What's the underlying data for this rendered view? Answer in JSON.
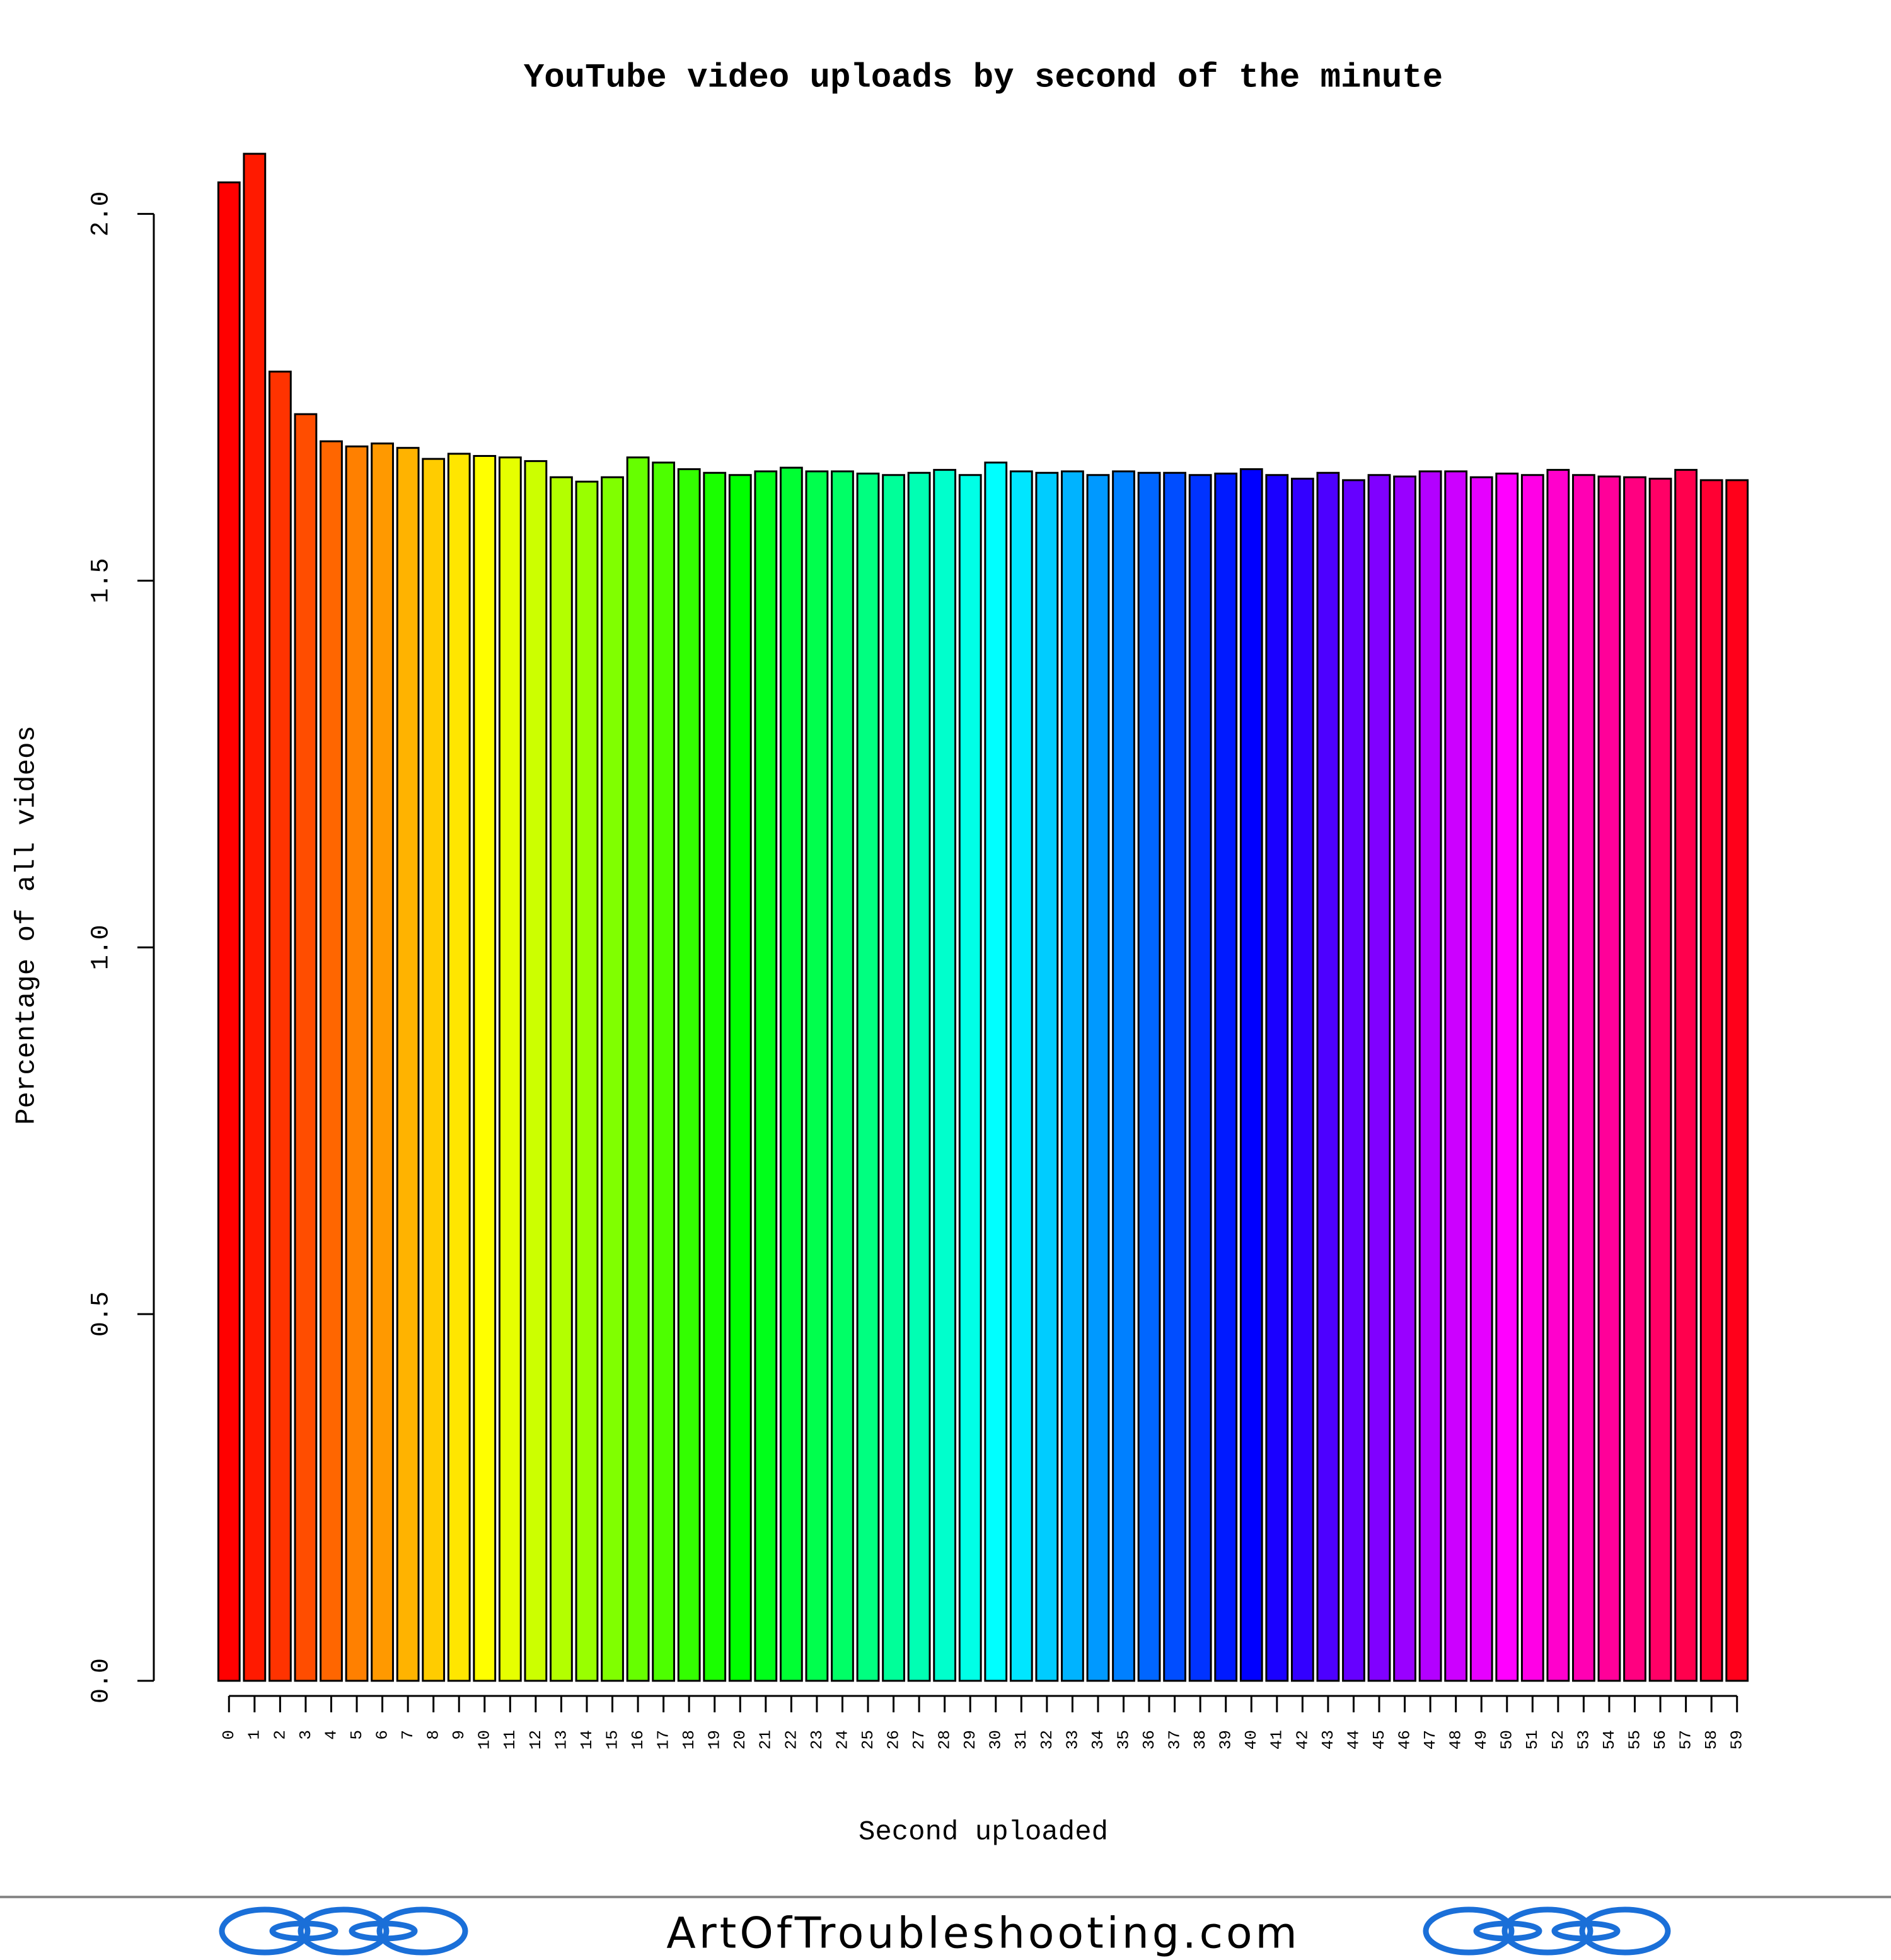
{
  "chart_data": {
    "type": "bar",
    "title": "YouTube video uploads by second of the minute",
    "x_label": "Second uploaded",
    "y_label": "Percentage of all videos",
    "categories": [
      "0",
      "1",
      "2",
      "3",
      "4",
      "5",
      "6",
      "7",
      "8",
      "9",
      "10",
      "11",
      "12",
      "13",
      "14",
      "15",
      "16",
      "17",
      "18",
      "19",
      "20",
      "21",
      "22",
      "23",
      "24",
      "25",
      "26",
      "27",
      "28",
      "29",
      "30",
      "31",
      "32",
      "33",
      "34",
      "35",
      "36",
      "37",
      "38",
      "39",
      "40",
      "41",
      "42",
      "43",
      "44",
      "45",
      "46",
      "47",
      "48",
      "49",
      "50",
      "51",
      "52",
      "53",
      "54",
      "55",
      "56",
      "57",
      "58",
      "59"
    ],
    "values": [
      2.043,
      2.082,
      1.785,
      1.727,
      1.69,
      1.683,
      1.687,
      1.681,
      1.666,
      1.673,
      1.67,
      1.668,
      1.663,
      1.641,
      1.635,
      1.641,
      1.668,
      1.661,
      1.652,
      1.647,
      1.644,
      1.649,
      1.654,
      1.649,
      1.649,
      1.646,
      1.644,
      1.647,
      1.651,
      1.644,
      1.661,
      1.649,
      1.647,
      1.649,
      1.644,
      1.649,
      1.647,
      1.647,
      1.644,
      1.646,
      1.652,
      1.644,
      1.639,
      1.647,
      1.637,
      1.644,
      1.642,
      1.649,
      1.649,
      1.641,
      1.646,
      1.644,
      1.651,
      1.644,
      1.642,
      1.641,
      1.639,
      1.651,
      1.637,
      1.637
    ],
    "colors": [
      "#FF0000",
      "#FF1A00",
      "#FF3300",
      "#FF4D00",
      "#FF6600",
      "#FF8000",
      "#FF9900",
      "#FFB300",
      "#FFCC00",
      "#FFE600",
      "#FFFF00",
      "#E6FF00",
      "#CCFF00",
      "#B3FF00",
      "#99FF00",
      "#80FF00",
      "#66FF00",
      "#4DFF00",
      "#33FF00",
      "#1AFF00",
      "#00FF00",
      "#00FF1A",
      "#00FF33",
      "#00FF4D",
      "#00FF66",
      "#00FF80",
      "#00FF99",
      "#00FFB3",
      "#00FFCC",
      "#00FFE6",
      "#00FFFF",
      "#00E6FF",
      "#00CCFF",
      "#00B3FF",
      "#0099FF",
      "#0080FF",
      "#0066FF",
      "#004DFF",
      "#0033FF",
      "#001AFF",
      "#0000FF",
      "#1A00FF",
      "#3300FF",
      "#4D00FF",
      "#6600FF",
      "#8000FF",
      "#9900FF",
      "#B300FF",
      "#CC00FF",
      "#E600FF",
      "#FF00FF",
      "#FF00E6",
      "#FF00CC",
      "#FF00B3",
      "#FF0099",
      "#FF0080",
      "#FF0066",
      "#FF004D",
      "#FF0033",
      "#FF001A"
    ],
    "ylim": [
      0,
      2.082
    ],
    "yticks": [
      {
        "value": 0,
        "label": "0.0"
      },
      0.5,
      {
        "value": 1,
        "label": "1.0"
      },
      1.5,
      {
        "value": 2,
        "label": "2.0"
      }
    ]
  },
  "footer": {
    "text": "ArtOfTroubleshooting.com"
  }
}
